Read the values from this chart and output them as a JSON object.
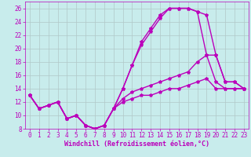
{
  "title": "",
  "xlabel": "Windchill (Refroidissement éolien,°C)",
  "xlim": [
    -0.5,
    23.5
  ],
  "ylim": [
    8,
    27
  ],
  "yticks": [
    8,
    10,
    12,
    14,
    16,
    18,
    20,
    22,
    24,
    26
  ],
  "xticks": [
    0,
    1,
    2,
    3,
    4,
    5,
    6,
    7,
    8,
    9,
    10,
    11,
    12,
    13,
    14,
    15,
    16,
    17,
    18,
    19,
    20,
    21,
    22,
    23
  ],
  "background_color": "#c8ecec",
  "grid_color": "#b0c8c8",
  "line_color": "#bb00bb",
  "series": [
    {
      "x": [
        0,
        1,
        2,
        3,
        4,
        5,
        6,
        7,
        8,
        9,
        10,
        11,
        12,
        13,
        14,
        15,
        16,
        17,
        18,
        19,
        20,
        21,
        22,
        23
      ],
      "y": [
        13,
        11,
        11.5,
        12,
        9.5,
        10,
        8.5,
        8,
        8.5,
        11,
        14,
        17.5,
        21,
        23,
        25,
        26,
        26,
        26,
        25.5,
        25,
        19,
        15,
        15,
        14
      ]
    },
    {
      "x": [
        0,
        1,
        2,
        3,
        4,
        5,
        6,
        7,
        8,
        9,
        10,
        11,
        12,
        13,
        14,
        15,
        16,
        17,
        18,
        19,
        20,
        21,
        22,
        23
      ],
      "y": [
        13,
        11,
        11.5,
        12,
        9.5,
        10,
        8.5,
        8,
        8.5,
        11,
        14,
        17.5,
        20.5,
        22.5,
        24.5,
        26,
        26,
        26,
        25.5,
        19,
        19,
        15,
        15,
        14
      ]
    },
    {
      "x": [
        0,
        1,
        2,
        3,
        4,
        5,
        6,
        7,
        8,
        9,
        10,
        11,
        12,
        13,
        14,
        15,
        16,
        17,
        18,
        19,
        20,
        21,
        22,
        23
      ],
      "y": [
        13,
        11,
        11.5,
        12,
        9.5,
        10,
        8.5,
        8,
        8.5,
        11,
        12.5,
        13.5,
        14,
        14.5,
        15,
        15.5,
        16,
        16.5,
        18,
        19,
        15,
        14,
        14,
        14
      ]
    },
    {
      "x": [
        0,
        1,
        2,
        3,
        4,
        5,
        6,
        7,
        8,
        9,
        10,
        11,
        12,
        13,
        14,
        15,
        16,
        17,
        18,
        19,
        20,
        21,
        22,
        23
      ],
      "y": [
        13,
        11,
        11.5,
        12,
        9.5,
        10,
        8.5,
        8,
        8.5,
        11,
        12,
        12.5,
        13,
        13,
        13.5,
        14,
        14,
        14.5,
        15,
        15.5,
        14,
        14,
        14,
        14
      ]
    }
  ],
  "xlabel_fontsize": 6,
  "tick_fontsize": 5.5,
  "line_width": 1.0,
  "marker": "*",
  "marker_size": 3
}
